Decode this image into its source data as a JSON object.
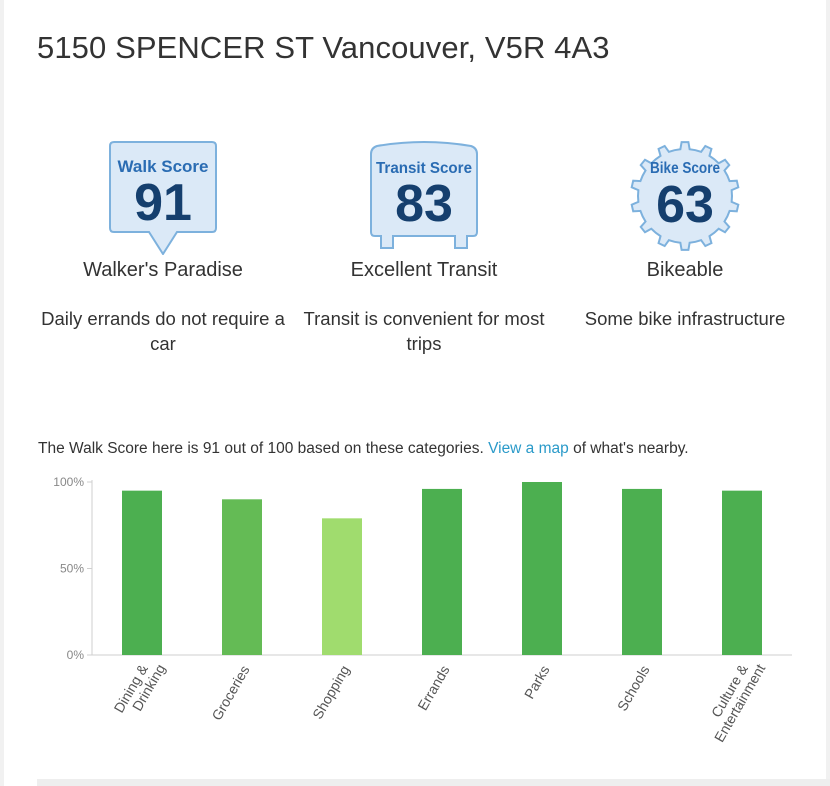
{
  "address": "5150 SPENCER ST Vancouver, V5R 4A3",
  "scores": [
    {
      "title": "Walk Score",
      "value": "91",
      "badge": "walk-badge",
      "description": "Walker's Paradise",
      "subtext": "Daily errands do not require a car"
    },
    {
      "title": "Transit Score",
      "value": "83",
      "badge": "transit-badge",
      "description": "Excellent Transit",
      "subtext": "Transit is convenient for most trips"
    },
    {
      "title": "Bike Score",
      "value": "63",
      "badge": "bike-badge",
      "description": "Bikeable",
      "subtext": "Some bike infrastructure"
    }
  ],
  "badge_colors": {
    "fill": "#dbe9f7",
    "stroke": "#7db1dd",
    "title": "#2a6cb3",
    "number": "#153f6e"
  },
  "intro": {
    "before": "The Walk Score here is 91 out of 100 based on these categories.",
    "link": "View a map",
    "after": "of what's nearby.",
    "link_color": "#2a9ac9"
  },
  "chart_data": {
    "type": "bar",
    "categories": [
      "Dining & Drinking",
      "Groceries",
      "Shopping",
      "Errands",
      "Parks",
      "Schools",
      "Culture & Entertainment"
    ],
    "values": [
      95,
      90,
      79,
      96,
      100,
      96,
      95
    ],
    "bar_colors": [
      "#4caf50",
      "#64bb55",
      "#a0dc6e",
      "#4caf50",
      "#4caf50",
      "#4caf50",
      "#4caf50"
    ],
    "yticks": [
      "0%",
      "50%",
      "100%"
    ],
    "ylim": [
      0,
      100
    ],
    "grid": false
  }
}
